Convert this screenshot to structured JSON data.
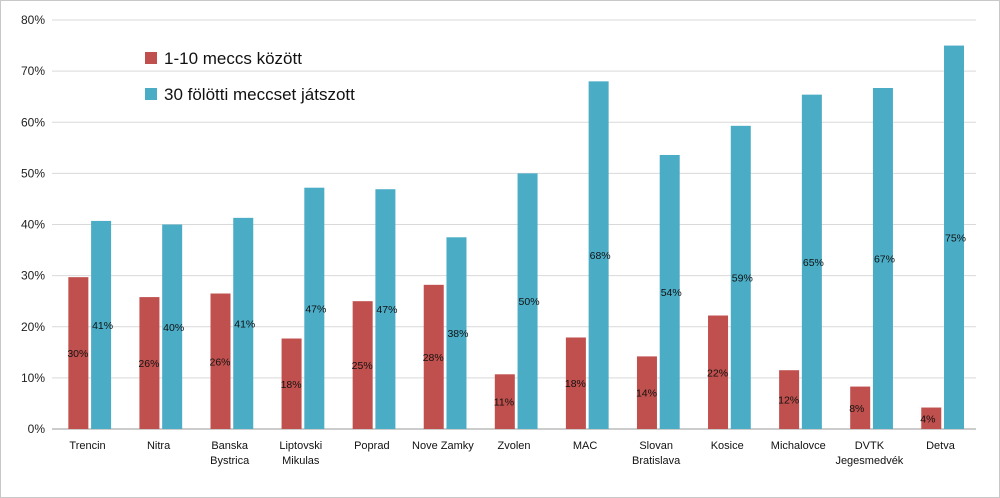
{
  "chart_data": {
    "type": "bar",
    "categories": [
      [
        "Trencin"
      ],
      [
        "Nitra"
      ],
      [
        "Banska",
        "Bystrica"
      ],
      [
        "Liptovski",
        "Mikulas"
      ],
      [
        "Poprad"
      ],
      [
        "Nove Zamky"
      ],
      [
        "Zvolen"
      ],
      [
        "MAC"
      ],
      [
        "Slovan",
        "Bratislava"
      ],
      [
        "Kosice"
      ],
      [
        "Michalovce"
      ],
      [
        "DVTK",
        "Jegesmedvék"
      ],
      [
        "Detva"
      ]
    ],
    "series": [
      {
        "name": "1-10 meccs között",
        "color": "#c0504d",
        "values": [
          29.7,
          25.8,
          26.5,
          17.7,
          25.0,
          28.2,
          10.7,
          17.9,
          14.2,
          22.2,
          11.5,
          8.3,
          4.2
        ],
        "labels": [
          "30%",
          "26%",
          "26%",
          "18%",
          "25%",
          "28%",
          "11%",
          "18%",
          "14%",
          "22%",
          "12%",
          "8%",
          "4%"
        ]
      },
      {
        "name": "30 fölötti meccset játszott",
        "color": "#4bacc6",
        "values": [
          40.7,
          40.0,
          41.3,
          47.2,
          46.9,
          37.5,
          50.0,
          68.0,
          53.6,
          59.3,
          65.4,
          66.7,
          75.0
        ],
        "labels": [
          "41%",
          "40%",
          "41%",
          "47%",
          "47%",
          "38%",
          "50%",
          "68%",
          "54%",
          "59%",
          "65%",
          "67%",
          "75%"
        ]
      }
    ],
    "yticks": [
      "0%",
      "10%",
      "20%",
      "30%",
      "40%",
      "50%",
      "60%",
      "70%",
      "80%"
    ],
    "ylim": [
      0,
      80
    ],
    "grid": true,
    "legend": "top-left",
    "xlabel": "",
    "ylabel": ""
  }
}
